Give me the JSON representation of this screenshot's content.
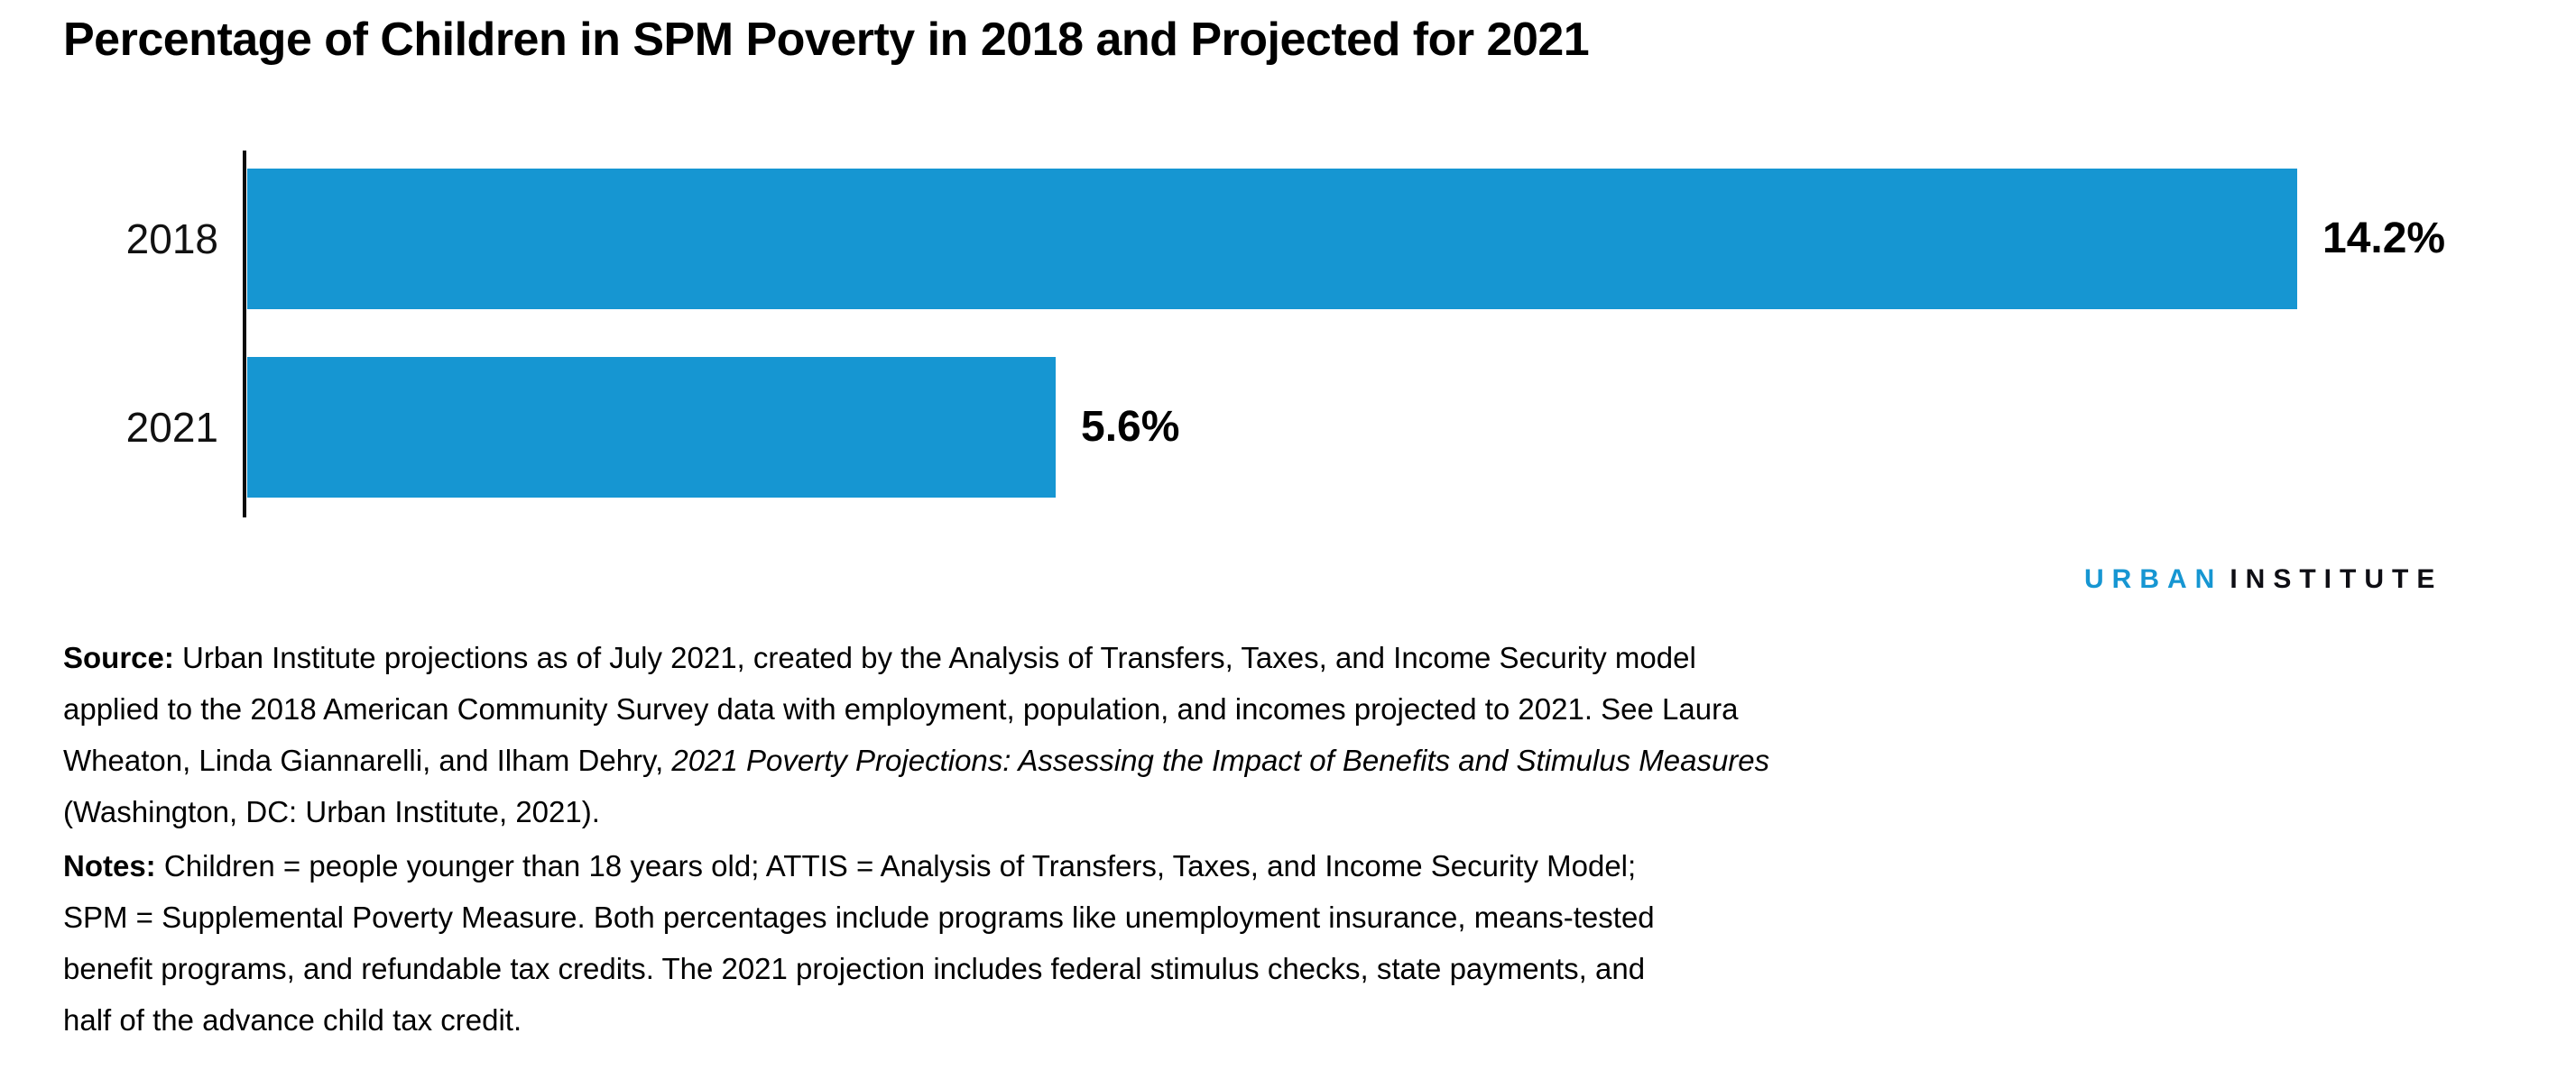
{
  "chart_data": {
    "type": "bar",
    "orientation": "horizontal",
    "title": "Percentage of Children in SPM Poverty in 2018 and Projected for 2021",
    "categories": [
      "2018",
      "2021"
    ],
    "values": [
      14.2,
      5.6
    ],
    "value_labels": [
      "14.2%",
      "5.6%"
    ],
    "xlabel": "",
    "ylabel": "",
    "xlim": [
      0,
      16
    ],
    "grid": false,
    "legend": false,
    "bar_color": "#1696d2",
    "axis_color": "#0a0a0a"
  },
  "logo": {
    "urban": "URBAN",
    "institute": "INSTITUTE",
    "urban_color": "#1696d2",
    "institute_color": "#0e0e14"
  },
  "source": {
    "line1_bold": "Source:",
    "line1_rest": " Urban Institute projections as of July 2021, created by the Analysis of Transfers, Taxes, and Income Security model",
    "line2": "applied to the 2018 American Community Survey data with employment, population, and incomes projected to 2021. See Laura",
    "line3_pre": "Wheaton, Linda Giannarelli, and Ilham Dehry, ",
    "line3_italic": "2021 Poverty Projections: Assessing the Impact of Benefits and Stimulus Measures",
    "line4": "(Washington, DC: Urban Institute, 2021)."
  },
  "notes": {
    "line1_bold": "Notes:",
    "line1_rest": " Children = people younger than 18 years old; ATTIS = Analysis of Transfers, Taxes, and Income Security Model;",
    "line2": "SPM = Supplemental Poverty Measure. Both percentages include programs like unemployment insurance, means-tested",
    "line3": "benefit programs, and refundable tax credits. The 2021 projection includes federal stimulus checks, state payments, and",
    "line4": "half of the advance child tax credit."
  }
}
